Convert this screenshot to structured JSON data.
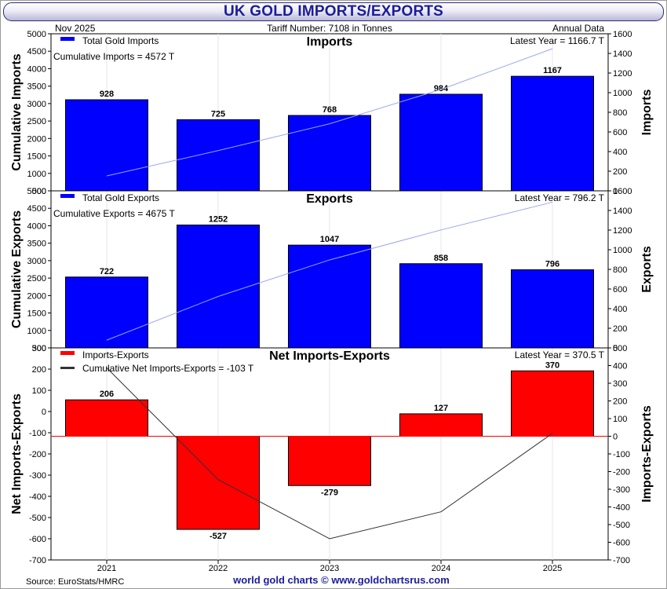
{
  "title": "UK GOLD IMPORTS/EXPORTS",
  "header": {
    "date": "Nov  2025",
    "tariff": "Tariff Number: 7108 in Tonnes",
    "frequency": "Annual Data"
  },
  "footer": {
    "source": "Source: EuroStats/HMRC",
    "brand": "world gold charts © www.goldchartsrus.com"
  },
  "colors": {
    "title_text": "#1c1c9c",
    "bar_blue": "#0000ff",
    "bar_red": "#ff0000",
    "cumulative_line_light": "#9aa6f0",
    "cumulative_line_dark": "#333333",
    "zero_line": "#ff0000"
  },
  "chart_data": [
    {
      "type": "bar",
      "title": "Imports",
      "categories": [
        "2021",
        "2022",
        "2023",
        "2024",
        "2025"
      ],
      "series": [
        {
          "name": "Total Gold Imports",
          "values": [
            928,
            725,
            768,
            984,
            1167
          ],
          "axis": "right",
          "color": "#0000ff"
        }
      ],
      "cumulative_line": {
        "values": [
          928,
          1653,
          2421,
          3405,
          4572
        ],
        "axis": "left",
        "color": "#9aa6f0"
      },
      "data_labels": [
        "928",
        "725",
        "768",
        "984",
        "1167"
      ],
      "legend_texts": [
        "Total Gold Imports",
        "Cumulative Imports = 4572 T"
      ],
      "latest_text": "Latest Year = 1166.7 T",
      "ylabel_left": "Cumulative Imports",
      "ylabel_right": "Imports",
      "ylim_left": [
        500,
        5000
      ],
      "yticks_left": [
        500,
        1000,
        1500,
        2000,
        2500,
        3000,
        3500,
        4000,
        4500,
        5000
      ],
      "ylim_right": [
        0,
        1600
      ],
      "yticks_right": [
        0,
        200,
        400,
        600,
        800,
        1000,
        1200,
        1400,
        1600
      ],
      "grid": true,
      "legend_position": "top-left"
    },
    {
      "type": "bar",
      "title": "Exports",
      "categories": [
        "2021",
        "2022",
        "2023",
        "2024",
        "2025"
      ],
      "series": [
        {
          "name": "Total Gold Exports",
          "values": [
            722,
            1252,
            1047,
            858,
            796
          ],
          "axis": "right",
          "color": "#0000ff"
        }
      ],
      "cumulative_line": {
        "values": [
          722,
          1974,
          3021,
          3879,
          4675
        ],
        "axis": "left",
        "color": "#9aa6f0"
      },
      "data_labels": [
        "722",
        "1252",
        "1047",
        "858",
        "796"
      ],
      "legend_texts": [
        "Total Gold Exports",
        "Cumulative Exports = 4675 T"
      ],
      "latest_text": "Latest Year = 796.2 T",
      "ylabel_left": "Cumulative Exports",
      "ylabel_right": "Exports",
      "ylim_left": [
        500,
        5000
      ],
      "yticks_left": [
        500,
        1000,
        1500,
        2000,
        2500,
        3000,
        3500,
        4000,
        4500,
        5000
      ],
      "ylim_right": [
        0,
        1600
      ],
      "yticks_right": [
        0,
        200,
        400,
        600,
        800,
        1000,
        1200,
        1400,
        1600
      ],
      "grid": true,
      "legend_position": "top-left"
    },
    {
      "type": "bar",
      "title": "Net Imports-Exports",
      "categories": [
        "2021",
        "2022",
        "2023",
        "2024",
        "2025"
      ],
      "series": [
        {
          "name": "Imports-Exports",
          "values": [
            206,
            -527,
            -279,
            127,
            370
          ],
          "axis": "right",
          "color": "#ff0000"
        }
      ],
      "cumulative_line": {
        "values": [
          206,
          -321,
          -600,
          -473,
          -103
        ],
        "axis": "left",
        "color": "#333333"
      },
      "data_labels": [
        "206",
        "-527",
        "-279",
        "127",
        "370"
      ],
      "legend_texts": [
        "Imports-Exports",
        "Cumulative Net Imports-Exports = -103 T"
      ],
      "latest_text": "Latest Year = 370.5 T",
      "ylabel_left": "Net Imports-Exports",
      "ylabel_right": "Imports-Exports",
      "ylim_left": [
        -700,
        300
      ],
      "yticks_left": [
        -700,
        -600,
        -500,
        -400,
        -300,
        -200,
        -100,
        0,
        100,
        200,
        300
      ],
      "ylim_right": [
        -700,
        500
      ],
      "yticks_right": [
        -700,
        -600,
        -500,
        -400,
        -300,
        -200,
        -100,
        0,
        100,
        200,
        300,
        400,
        500
      ],
      "grid": true,
      "legend_position": "top-left"
    }
  ]
}
